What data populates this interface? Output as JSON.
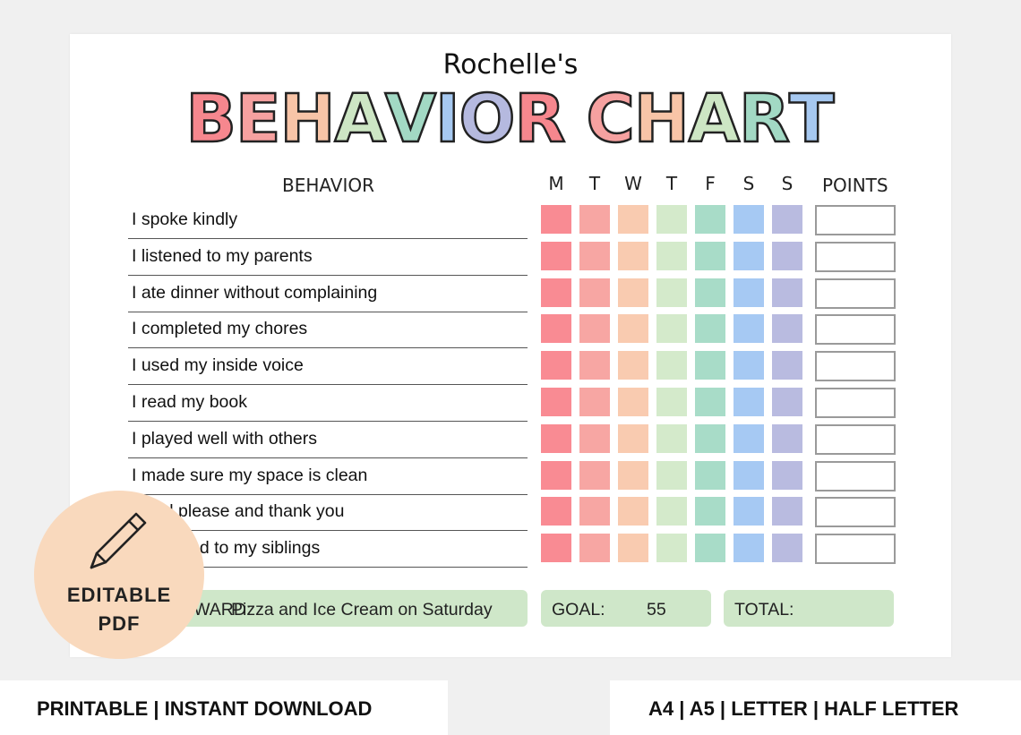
{
  "header": {
    "owner": "Rochelle's",
    "title_letters": [
      {
        "ch": "B",
        "color": "#f6878e"
      },
      {
        "ch": "E",
        "color": "#f6a1a0"
      },
      {
        "ch": "H",
        "color": "#f8c4a7"
      },
      {
        "ch": "A",
        "color": "#cde6c4"
      },
      {
        "ch": "V",
        "color": "#a2d9c4"
      },
      {
        "ch": "I",
        "color": "#a6c8f0"
      },
      {
        "ch": "O",
        "color": "#b5b9df"
      },
      {
        "ch": "R",
        "color": "#f6878e"
      },
      {
        "ch": " ",
        "color": "#ffffff"
      },
      {
        "ch": "C",
        "color": "#f6a1a0"
      },
      {
        "ch": "H",
        "color": "#f8c4a7"
      },
      {
        "ch": "A",
        "color": "#cde6c4"
      },
      {
        "ch": "R",
        "color": "#a2d9c4"
      },
      {
        "ch": "T",
        "color": "#a6c8f0"
      }
    ]
  },
  "columns": {
    "behavior": "BEHAVIOR",
    "days": [
      "M",
      "T",
      "W",
      "T",
      "F",
      "S",
      "S"
    ],
    "points": "POINTS"
  },
  "day_colors": [
    "#f98b93",
    "#f7a6a3",
    "#f9cbb0",
    "#d4eacb",
    "#a8dcc8",
    "#a6c9f3",
    "#b9bbe0"
  ],
  "behaviors": [
    "I spoke kindly",
    "I listened to my parents",
    "I ate dinner without complaining",
    "I completed my chores",
    "I used my inside voice",
    "I read my book",
    "I played well with others",
    "I made sure my space is clean",
    "I said please and thank you",
    "I was kind to my siblings"
  ],
  "footer_bar": {
    "reward_label": "REWARD:",
    "reward_value": "Pizza and Ice Cream on Saturday",
    "goal_label": "GOAL:",
    "goal_value": "55",
    "total_label": "TOTAL:"
  },
  "badge": {
    "icon": "pencil-icon",
    "line1": "EDITABLE",
    "line2": "PDF"
  },
  "banner": {
    "left": "PRINTABLE  |  INSTANT DOWNLOAD",
    "right": "A4 | A5 | LETTER | HALF LETTER"
  }
}
